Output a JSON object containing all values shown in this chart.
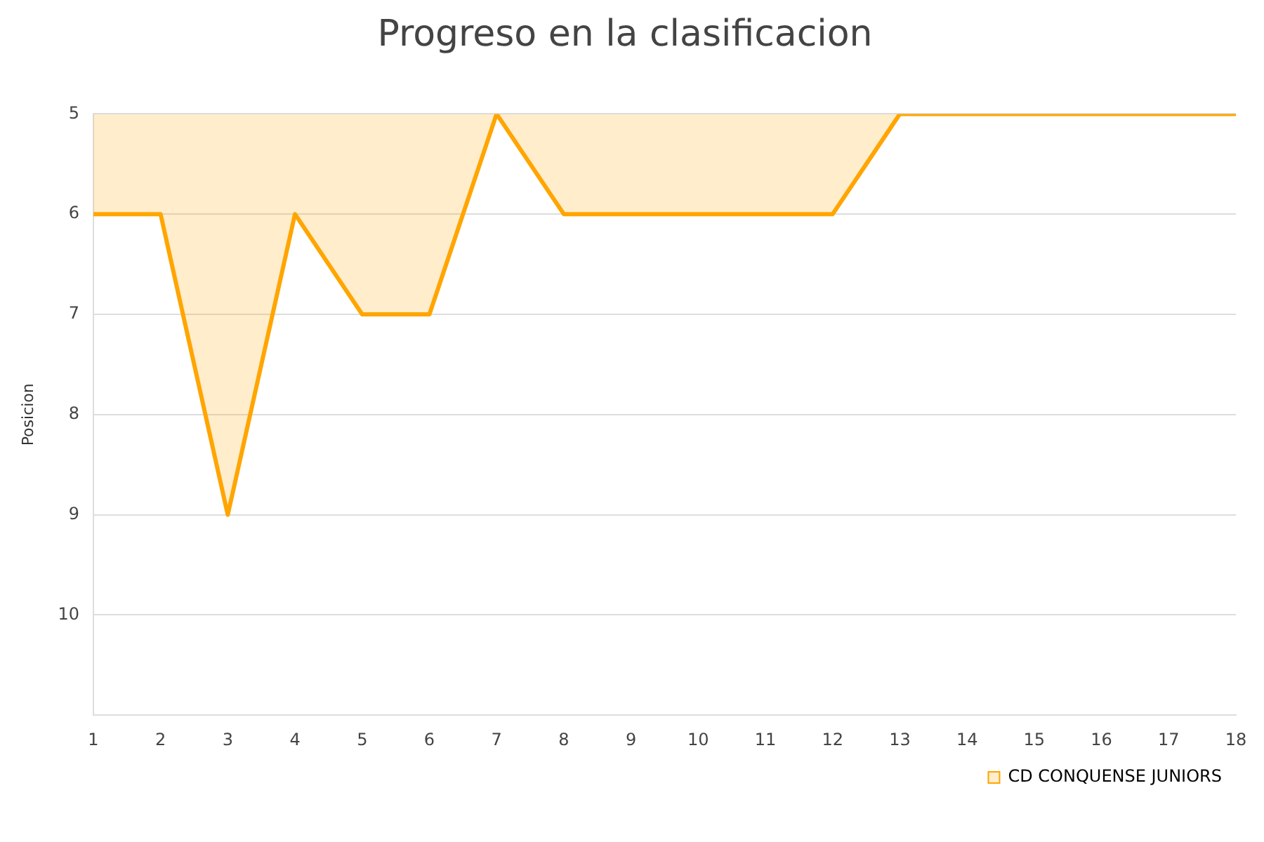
{
  "chart_data": {
    "type": "area",
    "title": "Progreso en la clasificacion",
    "ylabel": "Posicion",
    "x": [
      1,
      2,
      3,
      4,
      5,
      6,
      7,
      8,
      9,
      10,
      11,
      12,
      13,
      14,
      15,
      16,
      17,
      18
    ],
    "series": [
      {
        "name": "CD CONQUENSE JUNIORS",
        "color": "#ffa500",
        "values": [
          6,
          6,
          9,
          6,
          7,
          7,
          5,
          6,
          6,
          6,
          6,
          6,
          5,
          5,
          5,
          5,
          5,
          5
        ]
      }
    ],
    "xlim": [
      1,
      18
    ],
    "xticks": [
      1,
      2,
      3,
      4,
      5,
      6,
      7,
      8,
      9,
      10,
      11,
      12,
      13,
      14,
      15,
      16,
      17,
      18
    ],
    "ylim": [
      11,
      5
    ],
    "yticks": [
      5,
      6,
      7,
      8,
      9,
      10
    ],
    "grid": "y",
    "legend": "bottom right",
    "marker": "none"
  }
}
